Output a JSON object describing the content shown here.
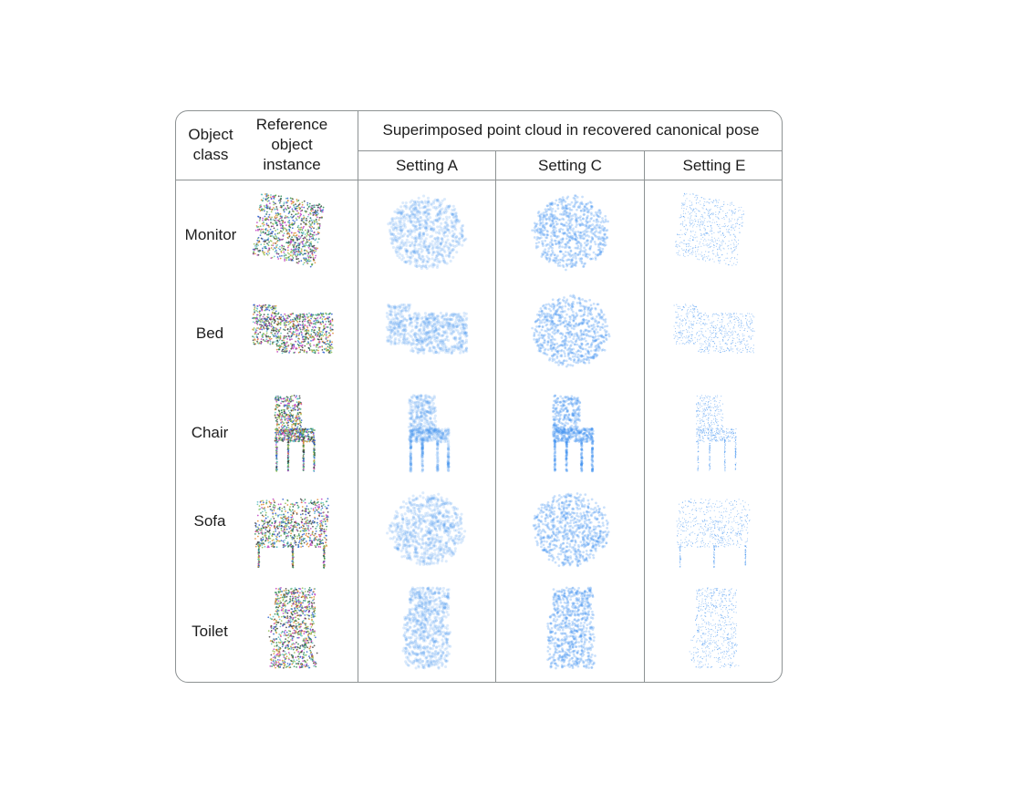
{
  "table": {
    "header": {
      "object_class": "Object class",
      "reference_instance": "Reference object instance",
      "superimposed": "Superimposed point cloud in recovered canonical pose",
      "settings": [
        "Setting A",
        "Setting C",
        "Setting E"
      ]
    },
    "rows": [
      {
        "label": "Monitor"
      },
      {
        "label": "Bed"
      },
      {
        "label": "Chair"
      },
      {
        "label": "Sofa"
      },
      {
        "label": "Toilet"
      }
    ]
  },
  "colors": {
    "border": "#8d9293",
    "cloud_blue": "#3d8ff0",
    "reference_palette": [
      "#2e8b57",
      "#c040c0",
      "#3060d0",
      "#e08a30",
      "#60c0c0",
      "#404040",
      "#90c050"
    ]
  }
}
